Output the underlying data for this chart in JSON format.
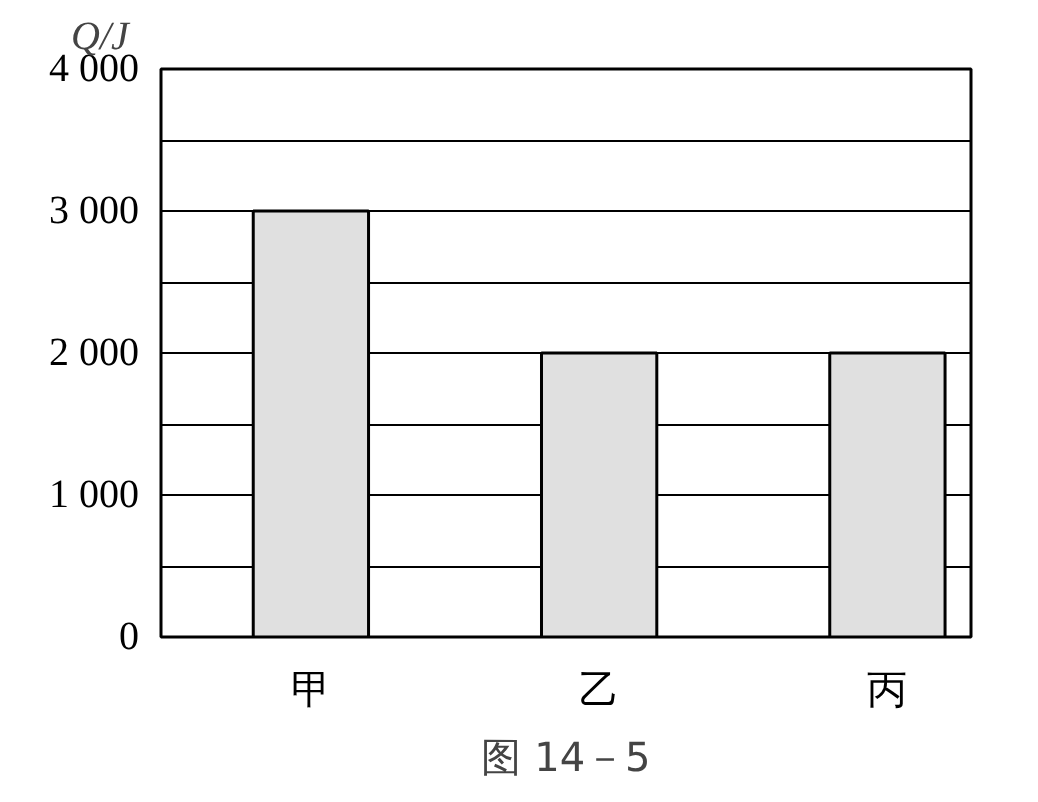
{
  "chart_data": {
    "type": "bar",
    "ylabel": "Q/J",
    "categories": [
      "甲",
      "乙",
      "丙"
    ],
    "values": [
      3000,
      2000,
      2000
    ],
    "color": "#e0e0e0",
    "ylim": [
      0,
      4000
    ],
    "yticks": [
      {
        "value": 0,
        "label": "0"
      },
      {
        "value": 500,
        "label": null
      },
      {
        "value": 1000,
        "label": "1 000"
      },
      {
        "value": 1500,
        "label": null
      },
      {
        "value": 2000,
        "label": "2 000"
      },
      {
        "value": 2500,
        "label": null
      },
      {
        "value": 3000,
        "label": "3 000"
      },
      {
        "value": 3500,
        "label": null
      },
      {
        "value": 4000,
        "label": "4 000"
      }
    ],
    "grid": "y",
    "annotations": [
      "图 14－5"
    ]
  }
}
